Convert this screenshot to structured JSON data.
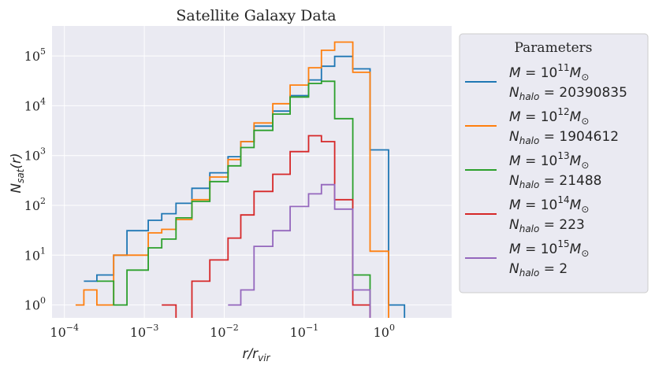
{
  "chart_data": {
    "type": "histogram-step",
    "title": "Satellite Galaxy Data",
    "xlabel": "r/r_vir",
    "ylabel": "N_sat(r)",
    "xscale": "log",
    "yscale": "log",
    "xlim": [
      7e-05,
      7
    ],
    "ylim": [
      0.55,
      400000
    ],
    "x_ticks": [
      {
        "value": 0.0001,
        "base": "10",
        "exp": "−4"
      },
      {
        "value": 0.001,
        "base": "10",
        "exp": "−3"
      },
      {
        "value": 0.01,
        "base": "10",
        "exp": "−2"
      },
      {
        "value": 0.1,
        "base": "10",
        "exp": "−1"
      },
      {
        "value": 1,
        "base": "10",
        "exp": "0"
      }
    ],
    "y_ticks": [
      {
        "value": 1,
        "base": "10",
        "exp": "0"
      },
      {
        "value": 10,
        "base": "10",
        "exp": "1"
      },
      {
        "value": 100,
        "base": "10",
        "exp": "2"
      },
      {
        "value": 1000,
        "base": "10",
        "exp": "3"
      },
      {
        "value": 10000,
        "base": "10",
        "exp": "4"
      },
      {
        "value": 100000,
        "base": "10",
        "exp": "5"
      }
    ],
    "grid": true,
    "legend_title": "Parameters",
    "legend_position": "outside-right",
    "bin_edges": [
      0.000138,
      0.000175,
      0.000255,
      0.000413,
      0.000607,
      0.00112,
      0.00165,
      0.00249,
      0.00394,
      0.0066,
      0.01115,
      0.0161,
      0.0236,
      0.0405,
      0.0668,
      0.1135,
      0.1645,
      0.2405,
      0.4055,
      0.6675,
      1.137,
      1.8,
      3.0
    ],
    "series": [
      {
        "mass_exp": "11",
        "n_halo": "20390835",
        "color": "#1f77b4",
        "values": [
          null,
          3,
          4,
          10,
          31,
          50,
          68,
          110,
          220,
          450,
          950,
          1900,
          3900,
          7800,
          16000,
          33000,
          62000,
          98000,
          55000,
          1300,
          1.0,
          null
        ]
      },
      {
        "mass_exp": "12",
        "n_halo": "1904612",
        "color": "#ff7f0e",
        "values": [
          1,
          2,
          1,
          10,
          10,
          28,
          33,
          52,
          130,
          370,
          830,
          1900,
          4500,
          11000,
          26000,
          58000,
          130000,
          190000,
          47000,
          12,
          null,
          null
        ]
      },
      {
        "mass_exp": "13",
        "n_halo": "21488",
        "color": "#2ca02c",
        "values": [
          null,
          null,
          3,
          1,
          5,
          14,
          21,
          56,
          120,
          300,
          620,
          1450,
          3200,
          6800,
          15000,
          28000,
          31000,
          5500,
          4,
          null,
          null,
          null
        ]
      },
      {
        "mass_exp": "14",
        "n_halo": "223",
        "color": "#d62728",
        "values": [
          null,
          null,
          null,
          null,
          null,
          null,
          1,
          null,
          3,
          8,
          22,
          64,
          190,
          420,
          1200,
          2500,
          1900,
          130,
          1,
          null,
          null,
          null
        ]
      },
      {
        "mass_exp": "15",
        "n_halo": "2",
        "color": "#9467bd",
        "values": [
          null,
          null,
          null,
          null,
          null,
          null,
          null,
          null,
          null,
          null,
          1,
          2,
          15,
          31,
          95,
          170,
          260,
          84,
          2,
          null,
          null,
          null
        ]
      }
    ]
  }
}
